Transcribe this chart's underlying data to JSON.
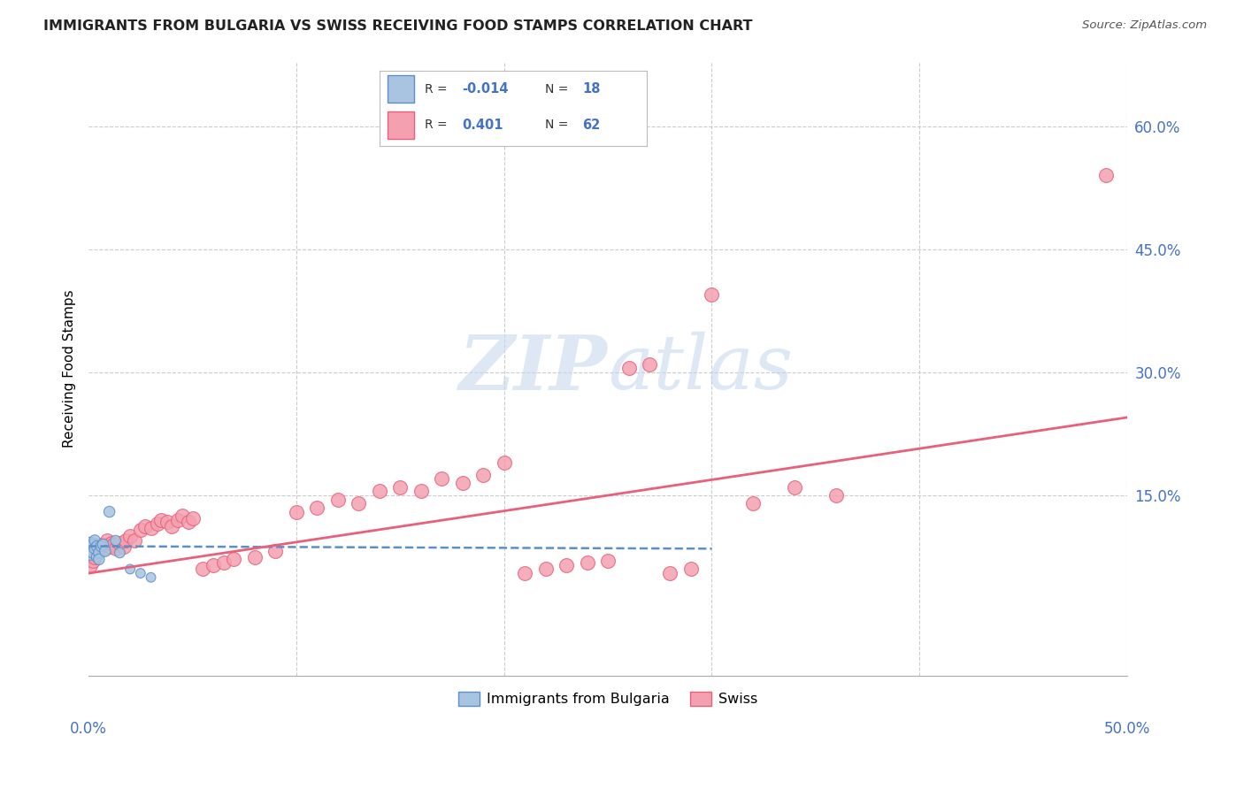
{
  "title": "IMMIGRANTS FROM BULGARIA VS SWISS RECEIVING FOOD STAMPS CORRELATION CHART",
  "source": "Source: ZipAtlas.com",
  "ylabel": "Receiving Food Stamps",
  "ytick_labels": [
    "60.0%",
    "45.0%",
    "30.0%",
    "15.0%"
  ],
  "ytick_values": [
    0.6,
    0.45,
    0.3,
    0.15
  ],
  "xlim": [
    0.0,
    0.5
  ],
  "ylim": [
    -0.07,
    0.68
  ],
  "watermark": "ZIPatlas",
  "legend_bulgaria_R": "-0.014",
  "legend_bulgaria_N": "18",
  "legend_swiss_R": "0.401",
  "legend_swiss_N": "62",
  "color_bulgaria": "#a8c4e0",
  "color_swiss": "#f4a0b0",
  "line_color_bulgaria": "#5b8fc9",
  "line_color_swiss": "#e8607a",
  "bul_x": [
    0.001,
    0.002,
    0.002,
    0.003,
    0.003,
    0.004,
    0.004,
    0.005,
    0.005,
    0.006,
    0.007,
    0.008,
    0.01,
    0.013,
    0.015,
    0.02,
    0.025,
    0.03
  ],
  "bul_y": [
    0.085,
    0.09,
    0.08,
    0.095,
    0.085,
    0.075,
    0.088,
    0.08,
    0.072,
    0.088,
    0.09,
    0.082,
    0.13,
    0.095,
    0.08,
    0.06,
    0.055,
    0.05
  ],
  "bul_sizes": [
    350,
    80,
    80,
    80,
    80,
    80,
    80,
    80,
    80,
    80,
    80,
    80,
    80,
    70,
    70,
    60,
    60,
    60
  ],
  "sw_x": [
    0.001,
    0.002,
    0.003,
    0.003,
    0.004,
    0.005,
    0.005,
    0.006,
    0.007,
    0.008,
    0.009,
    0.01,
    0.011,
    0.012,
    0.013,
    0.015,
    0.017,
    0.018,
    0.02,
    0.022,
    0.025,
    0.027,
    0.03,
    0.033,
    0.035,
    0.038,
    0.04,
    0.043,
    0.045,
    0.048,
    0.05,
    0.055,
    0.06,
    0.065,
    0.07,
    0.08,
    0.09,
    0.1,
    0.11,
    0.12,
    0.13,
    0.14,
    0.15,
    0.16,
    0.17,
    0.18,
    0.19,
    0.2,
    0.21,
    0.22,
    0.23,
    0.24,
    0.25,
    0.26,
    0.27,
    0.28,
    0.29,
    0.3,
    0.32,
    0.34,
    0.36,
    0.49
  ],
  "sw_y": [
    0.065,
    0.07,
    0.075,
    0.08,
    0.082,
    0.085,
    0.088,
    0.09,
    0.085,
    0.09,
    0.095,
    0.088,
    0.092,
    0.09,
    0.085,
    0.092,
    0.088,
    0.095,
    0.1,
    0.095,
    0.108,
    0.112,
    0.11,
    0.115,
    0.12,
    0.118,
    0.112,
    0.12,
    0.125,
    0.118,
    0.122,
    0.06,
    0.065,
    0.068,
    0.072,
    0.075,
    0.082,
    0.13,
    0.135,
    0.145,
    0.14,
    0.155,
    0.16,
    0.155,
    0.17,
    0.165,
    0.175,
    0.19,
    0.055,
    0.06,
    0.065,
    0.068,
    0.07,
    0.305,
    0.31,
    0.055,
    0.06,
    0.395,
    0.14,
    0.16,
    0.15,
    0.54
  ],
  "bul_trend_x": [
    0.0,
    0.3
  ],
  "bul_trend_y": [
    0.088,
    0.085
  ],
  "sw_trend_x": [
    0.0,
    0.5
  ],
  "sw_trend_y": [
    0.055,
    0.245
  ]
}
